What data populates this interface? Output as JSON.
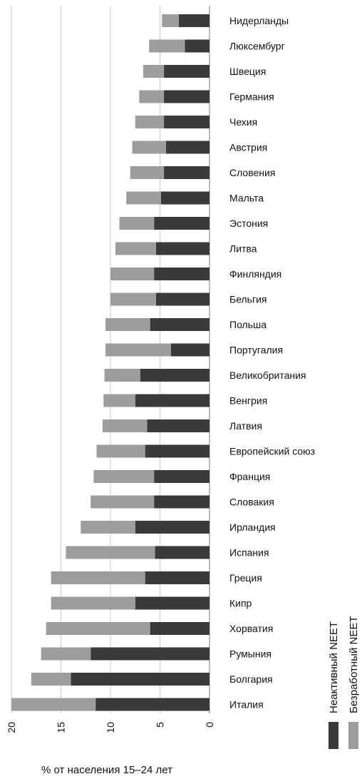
{
  "chart_data": {
    "type": "bar",
    "orientation": "horizontal-stacked",
    "categories": [
      "Нидерланды",
      "Люксембург",
      "Швеция",
      "Германия",
      "Чехия",
      "Австрия",
      "Словения",
      "Мальта",
      "Эстония",
      "Литва",
      "Финляндия",
      "Бельгия",
      "Польша",
      "Португалия",
      "Великобритания",
      "Венгрия",
      "Латвия",
      "Европейский союз",
      "Франция",
      "Словакия",
      "Ирландия",
      "Испания",
      "Греция",
      "Кипр",
      "Хорватия",
      "Румыния",
      "Болгария",
      "Италия"
    ],
    "series": [
      {
        "name": "Неактивный NEET",
        "color": "#3a3a3a",
        "values": [
          3.1,
          2.5,
          4.6,
          4.6,
          4.6,
          4.4,
          4.6,
          4.9,
          5.6,
          5.4,
          5.6,
          5.4,
          6.0,
          3.9,
          7.0,
          7.5,
          6.3,
          6.5,
          5.6,
          5.6,
          7.5,
          5.5,
          6.5,
          7.5,
          6.0,
          12.0,
          14.0,
          11.5
        ]
      },
      {
        "name": "Безработный NEET",
        "color": "#9d9d9d",
        "values": [
          1.7,
          3.6,
          2.1,
          2.5,
          2.9,
          3.4,
          3.4,
          3.5,
          3.5,
          4.1,
          4.4,
          4.6,
          4.5,
          6.6,
          3.6,
          3.2,
          4.5,
          4.9,
          6.1,
          6.4,
          5.5,
          9.0,
          9.5,
          8.5,
          10.5,
          5.0,
          4.0,
          8.5
        ]
      }
    ],
    "xlabel": "% от населения 15–24 лет",
    "xlim": [
      0,
      20
    ],
    "xticks": [
      "0",
      "5",
      "10",
      "15",
      "20"
    ],
    "axis_direction": "reversed",
    "grid": true,
    "legend_position": "bottom-right"
  }
}
